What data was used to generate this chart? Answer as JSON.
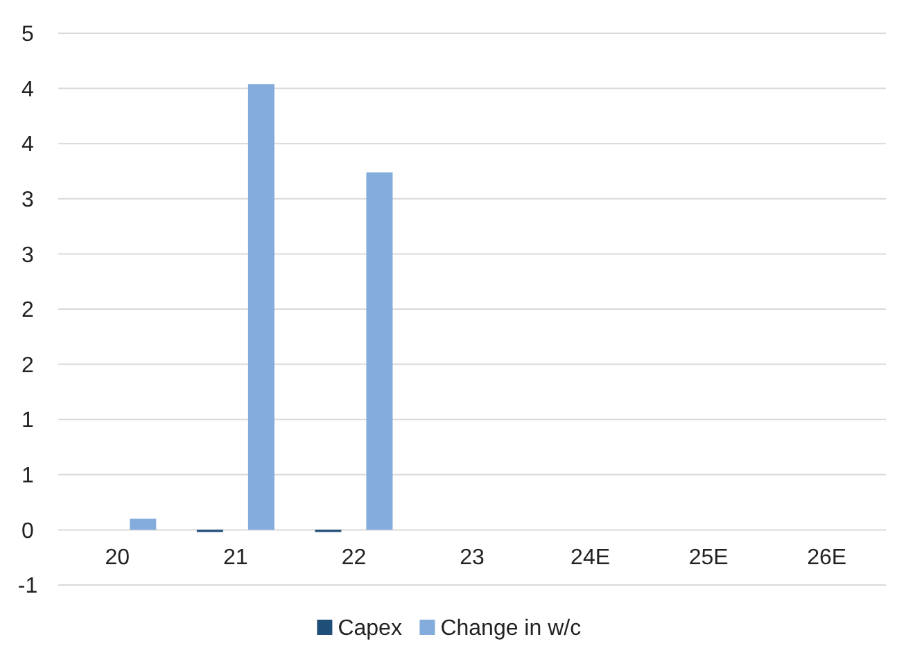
{
  "chart_data": {
    "type": "bar",
    "categories": [
      "20",
      "21",
      "22",
      "23",
      "24E",
      "25E",
      "26E"
    ],
    "series": [
      {
        "name": "Capex",
        "color": "#1f4e79",
        "values": [
          0,
          -0.02,
          -0.02,
          0,
          0,
          0,
          0
        ]
      },
      {
        "name": "Change in w/c",
        "color": "#83abdb",
        "values": [
          0.1,
          4.04,
          3.24,
          0,
          0,
          0,
          0
        ]
      }
    ],
    "ylim": [
      -0.5,
      4.5
    ],
    "yticks": [
      {
        "value": -0.5,
        "label": "-1"
      },
      {
        "value": 0,
        "label": "0"
      },
      {
        "value": 0.5,
        "label": "1"
      },
      {
        "value": 1,
        "label": "1"
      },
      {
        "value": 1.5,
        "label": "2"
      },
      {
        "value": 2,
        "label": "2"
      },
      {
        "value": 2.5,
        "label": "3"
      },
      {
        "value": 3,
        "label": "3"
      },
      {
        "value": 3.5,
        "label": "4"
      },
      {
        "value": 4,
        "label": "4"
      },
      {
        "value": 4.5,
        "label": "5"
      }
    ],
    "grid": "y",
    "legend": "bottom"
  }
}
